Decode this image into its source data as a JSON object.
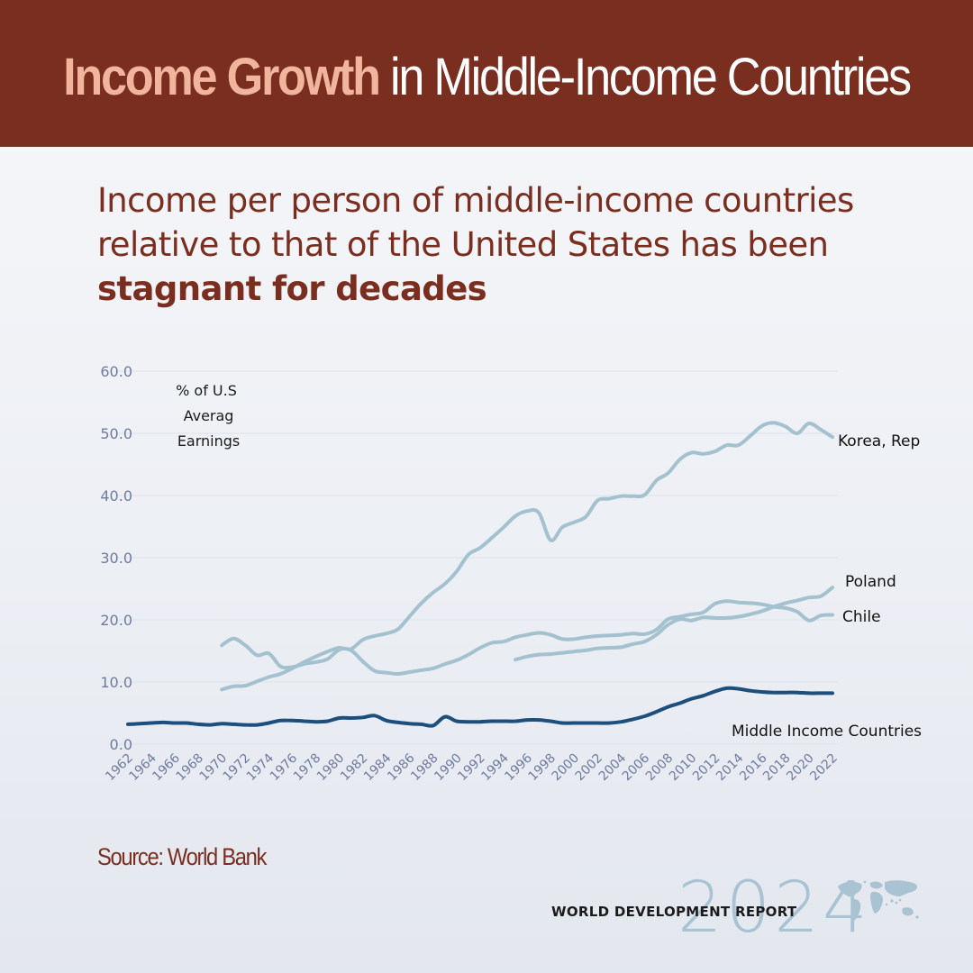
{
  "header": {
    "title_highlight": "Income Growth",
    "title_rest": " in Middle-Income Countries"
  },
  "subtitle": {
    "line_plain": "Income per person of middle-income countries relative to that of the United States has been ",
    "line_bold": "stagnant for decades"
  },
  "source": "Source: World Bank",
  "footer": {
    "report_year": "2024",
    "report_name": "WORLD DEVELOPMENT REPORT",
    "icon": "world-map-icon"
  },
  "colors": {
    "header_bg": "#7a2e1f",
    "header_highlight": "#f1b49c",
    "country_line": "#a3c1cf",
    "middle_income_line": "#1d4f7c",
    "axis_text": "#6f7aa0"
  },
  "chart_data": {
    "type": "line",
    "ylabel": "% of U.S. Average Earnings",
    "ylim": [
      0,
      60
    ],
    "yticks": [
      "0.0",
      "10.0",
      "20.0",
      "30.0",
      "40.0",
      "50.0",
      "60.0"
    ],
    "xlim": [
      1962,
      2022
    ],
    "xticks": [
      "1962",
      "1964",
      "1966",
      "1968",
      "1970",
      "1972",
      "1974",
      "1976",
      "1978",
      "1980",
      "1982",
      "1984",
      "1986",
      "1988",
      "1990",
      "1992",
      "1994",
      "1996",
      "1998",
      "2000",
      "2002",
      "2004",
      "2006",
      "2008",
      "2010",
      "2012",
      "2014",
      "2016",
      "2018",
      "2020",
      "2022"
    ],
    "grid": true,
    "legend": "direct-labels",
    "series": [
      {
        "name": "Korea, Rep",
        "x": [
          1970,
          1971,
          1972,
          1973,
          1974,
          1975,
          1976,
          1977,
          1978,
          1979,
          1980,
          1981,
          1982,
          1983,
          1984,
          1985,
          1986,
          1987,
          1988,
          1989,
          1990,
          1991,
          1992,
          1993,
          1994,
          1995,
          1996,
          1997,
          1998,
          1999,
          2000,
          2001,
          2002,
          2003,
          2004,
          2005,
          2006,
          2007,
          2008,
          2009,
          2010,
          2011,
          2012,
          2013,
          2014,
          2015,
          2016,
          2017,
          2018,
          2019,
          2020,
          2021,
          2022
        ],
        "y": [
          8.8,
          9.3,
          9.4,
          10.1,
          10.8,
          11.3,
          12.2,
          13.2,
          14.1,
          14.9,
          15.5,
          15.3,
          16.8,
          17.4,
          17.8,
          18.5,
          20.6,
          22.7,
          24.4,
          25.8,
          27.8,
          30.5,
          31.6,
          33.2,
          34.9,
          36.7,
          37.5,
          37.2,
          32.8,
          34.9,
          35.7,
          36.6,
          39.2,
          39.5,
          39.9,
          39.9,
          40.1,
          42.4,
          43.6,
          45.8,
          46.9,
          46.7,
          47.1,
          48.1,
          48.1,
          49.6,
          51.2,
          51.7,
          51.1,
          50.0,
          51.6,
          50.6,
          49.4
        ]
      },
      {
        "name": "Poland",
        "x": [
          1995,
          1996,
          1997,
          1998,
          1999,
          2000,
          2001,
          2002,
          2003,
          2004,
          2005,
          2006,
          2007,
          2008,
          2009,
          2010,
          2011,
          2012,
          2013,
          2014,
          2015,
          2016,
          2017,
          2018,
          2019,
          2020,
          2021,
          2022
        ],
        "y": [
          13.6,
          14.1,
          14.4,
          14.5,
          14.7,
          14.9,
          15.1,
          15.4,
          15.5,
          15.6,
          16.1,
          16.5,
          17.6,
          19.2,
          20.1,
          19.9,
          20.4,
          20.3,
          20.3,
          20.5,
          20.9,
          21.4,
          22.1,
          22.7,
          23.1,
          23.6,
          23.8,
          25.2
        ]
      },
      {
        "name": "Chile",
        "x": [
          1970,
          1971,
          1972,
          1973,
          1974,
          1975,
          1976,
          1977,
          1978,
          1979,
          1980,
          1981,
          1982,
          1983,
          1984,
          1985,
          1986,
          1987,
          1988,
          1989,
          1990,
          1991,
          1992,
          1993,
          1994,
          1995,
          1996,
          1997,
          1998,
          1999,
          2000,
          2001,
          2002,
          2003,
          2004,
          2005,
          2006,
          2007,
          2008,
          2009,
          2010,
          2011,
          2012,
          2013,
          2014,
          2015,
          2016,
          2017,
          2018,
          2019,
          2020,
          2021,
          2022
        ],
        "y": [
          15.9,
          17.0,
          15.9,
          14.3,
          14.6,
          12.5,
          12.4,
          12.9,
          13.2,
          13.7,
          15.2,
          15.1,
          13.3,
          11.8,
          11.5,
          11.3,
          11.6,
          11.9,
          12.2,
          12.9,
          13.5,
          14.4,
          15.5,
          16.3,
          16.5,
          17.2,
          17.6,
          17.9,
          17.6,
          16.9,
          16.9,
          17.2,
          17.4,
          17.5,
          17.6,
          17.8,
          17.7,
          18.4,
          20.1,
          20.5,
          20.9,
          21.2,
          22.6,
          23.0,
          22.8,
          22.7,
          22.5,
          22.1,
          21.9,
          21.3,
          19.9,
          20.7,
          20.8
        ]
      },
      {
        "name": "Middle Income Countries",
        "x": [
          1962,
          1963,
          1964,
          1965,
          1966,
          1967,
          1968,
          1969,
          1970,
          1971,
          1972,
          1973,
          1974,
          1975,
          1976,
          1977,
          1978,
          1979,
          1980,
          1981,
          1982,
          1983,
          1984,
          1985,
          1986,
          1987,
          1988,
          1989,
          1990,
          1991,
          1992,
          1993,
          1994,
          1995,
          1996,
          1997,
          1998,
          1999,
          2000,
          2001,
          2002,
          2003,
          2004,
          2005,
          2006,
          2007,
          2008,
          2009,
          2010,
          2011,
          2012,
          2013,
          2014,
          2015,
          2016,
          2017,
          2018,
          2019,
          2020,
          2021,
          2022
        ],
        "y": [
          3.2,
          3.3,
          3.4,
          3.5,
          3.4,
          3.4,
          3.2,
          3.1,
          3.3,
          3.2,
          3.1,
          3.1,
          3.4,
          3.8,
          3.8,
          3.7,
          3.6,
          3.7,
          4.2,
          4.2,
          4.3,
          4.6,
          3.8,
          3.5,
          3.3,
          3.2,
          3.0,
          4.4,
          3.7,
          3.6,
          3.6,
          3.7,
          3.7,
          3.7,
          3.9,
          3.9,
          3.7,
          3.4,
          3.4,
          3.4,
          3.4,
          3.4,
          3.6,
          4.0,
          4.5,
          5.2,
          6.0,
          6.6,
          7.3,
          7.8,
          8.5,
          9.0,
          8.9,
          8.6,
          8.4,
          8.3,
          8.3,
          8.3,
          8.2,
          8.2,
          8.2
        ]
      }
    ]
  }
}
